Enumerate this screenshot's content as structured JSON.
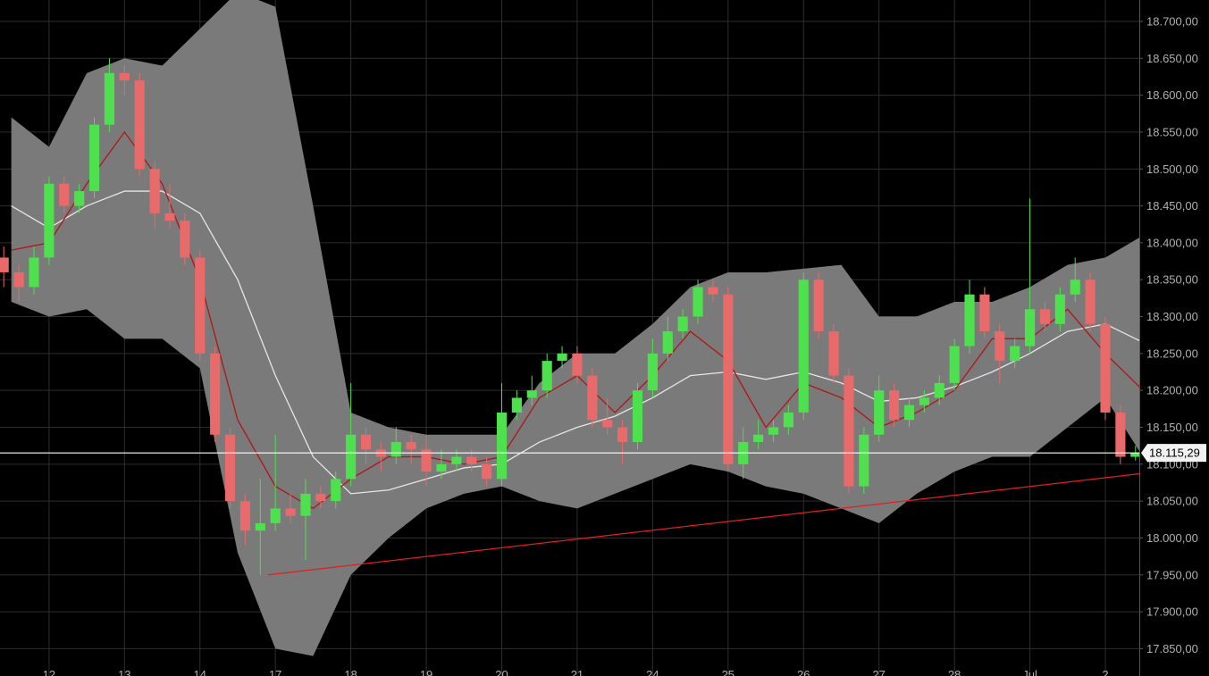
{
  "chart_data": {
    "type": "candlestick",
    "xlim": [
      -0.65,
      14.45
    ],
    "ylim": [
      17813,
      18729
    ],
    "grid": true,
    "up_color": "#4ee04e",
    "down_color": "#e86a6a",
    "xticks": [
      {
        "value": 0,
        "label": "12"
      },
      {
        "value": 1,
        "label": "13"
      },
      {
        "value": 2,
        "label": "14"
      },
      {
        "value": 3,
        "label": "17"
      },
      {
        "value": 4,
        "label": "18"
      },
      {
        "value": 5,
        "label": "19"
      },
      {
        "value": 6,
        "label": "20"
      },
      {
        "value": 7,
        "label": "21"
      },
      {
        "value": 8,
        "label": "24"
      },
      {
        "value": 9,
        "label": "25"
      },
      {
        "value": 10,
        "label": "26"
      },
      {
        "value": 11,
        "label": "27"
      },
      {
        "value": 12,
        "label": "28"
      },
      {
        "value": 13,
        "label": "Jul"
      },
      {
        "value": 14,
        "label": "2"
      }
    ],
    "yticks": [
      {
        "value": 17850,
        "label": "17.850,00"
      },
      {
        "value": 17900,
        "label": "17.900,00"
      },
      {
        "value": 17950,
        "label": "17.950,00"
      },
      {
        "value": 18000,
        "label": "18.000,00"
      },
      {
        "value": 18050,
        "label": "18.050,00"
      },
      {
        "value": 18100,
        "label": "18.100,00"
      },
      {
        "value": 18150,
        "label": "18.150,00"
      },
      {
        "value": 18200,
        "label": "18.200,00"
      },
      {
        "value": 18250,
        "label": "18.250,00"
      },
      {
        "value": 18300,
        "label": "18.300,00"
      },
      {
        "value": 18350,
        "label": "18.350,00"
      },
      {
        "value": 18400,
        "label": "18.400,00"
      },
      {
        "value": 18450,
        "label": "18.450,00"
      },
      {
        "value": 18500,
        "label": "18.500,00"
      },
      {
        "value": 18550,
        "label": "18.550,00"
      },
      {
        "value": 18600,
        "label": "18.600,00"
      },
      {
        "value": 18650,
        "label": "18.650,00"
      },
      {
        "value": 18700,
        "label": "18.700,00"
      }
    ],
    "x": [
      -0.6,
      -0.4,
      -0.2,
      0,
      0.2,
      0.4,
      0.6,
      0.8,
      1,
      1.2,
      1.4,
      1.6,
      1.8,
      2,
      2.2,
      2.4,
      2.6,
      2.8,
      3,
      3.2,
      3.4,
      3.6,
      3.8,
      4,
      4.2,
      4.4,
      4.6,
      4.8,
      5,
      5.2,
      5.4,
      5.6,
      5.8,
      6,
      6.2,
      6.4,
      6.6,
      6.8,
      7,
      7.2,
      7.4,
      7.6,
      7.8,
      8,
      8.2,
      8.4,
      8.6,
      8.8,
      9,
      9.2,
      9.4,
      9.6,
      9.8,
      10,
      10.2,
      10.4,
      10.6,
      10.8,
      11,
      11.2,
      11.4,
      11.6,
      11.8,
      12,
      12.2,
      12.4,
      12.6,
      12.8,
      13,
      13.2,
      13.4,
      13.6,
      13.8,
      14,
      14.2,
      14.4
    ],
    "open": [
      18380,
      18360,
      18340,
      18380,
      18480,
      18450,
      18470,
      18560,
      18630,
      18620,
      18500,
      18440,
      18430,
      18380,
      18250,
      18140,
      18050,
      18010,
      18020,
      18040,
      18030,
      18060,
      18050,
      18080,
      18140,
      18120,
      18110,
      18130,
      18120,
      18090,
      18100,
      18110,
      18100,
      18080,
      18170,
      18190,
      18200,
      18240,
      18250,
      18220,
      18160,
      18150,
      18130,
      18200,
      18250,
      18280,
      18300,
      18340,
      18330,
      18100,
      18130,
      18140,
      18150,
      18170,
      18350,
      18280,
      18220,
      18070,
      18140,
      18200,
      18160,
      18180,
      18190,
      18210,
      18260,
      18330,
      18280,
      18240,
      18260,
      18310,
      18290,
      18330,
      18350,
      18290,
      18170,
      18110
    ],
    "high": [
      18395,
      18370,
      18395,
      18490,
      18490,
      18480,
      18570,
      18650,
      18640,
      18630,
      18510,
      18480,
      18440,
      18390,
      18260,
      18150,
      18060,
      18080,
      18140,
      18060,
      18080,
      18070,
      18090,
      18210,
      18150,
      18130,
      18150,
      18140,
      18140,
      18120,
      18120,
      18120,
      18110,
      18210,
      18200,
      18220,
      18250,
      18260,
      18260,
      18230,
      18190,
      18160,
      18210,
      18270,
      18300,
      18310,
      18350,
      18350,
      18340,
      18150,
      18160,
      18160,
      18180,
      18360,
      18360,
      18290,
      18230,
      18150,
      18220,
      18210,
      18190,
      18200,
      18220,
      18270,
      18350,
      18340,
      18290,
      18270,
      18460,
      18320,
      18340,
      18380,
      18360,
      18300,
      18180,
      18125
    ],
    "low": [
      18340,
      18320,
      18330,
      18370,
      18440,
      18440,
      18460,
      18550,
      18600,
      18490,
      18420,
      18420,
      18370,
      18240,
      18130,
      18040,
      17990,
      17950,
      18010,
      18020,
      17970,
      18040,
      18040,
      18070,
      18100,
      18090,
      18100,
      18100,
      18070,
      18080,
      18090,
      18090,
      18070,
      18070,
      18160,
      18180,
      18190,
      18230,
      18210,
      18150,
      18140,
      18100,
      18120,
      18190,
      18240,
      18270,
      18290,
      18320,
      18090,
      18080,
      18120,
      18130,
      18140,
      18160,
      18270,
      18210,
      18060,
      18060,
      18130,
      18150,
      18150,
      18170,
      18180,
      18200,
      18250,
      18270,
      18210,
      18230,
      18250,
      18280,
      18280,
      18320,
      18280,
      18160,
      18100,
      18105
    ],
    "close": [
      18360,
      18340,
      18380,
      18480,
      18450,
      18470,
      18560,
      18630,
      18620,
      18500,
      18440,
      18430,
      18380,
      18250,
      18140,
      18050,
      18010,
      18020,
      18040,
      18030,
      18060,
      18050,
      18080,
      18140,
      18120,
      18110,
      18130,
      18120,
      18090,
      18100,
      18110,
      18100,
      18080,
      18170,
      18190,
      18200,
      18240,
      18250,
      18220,
      18160,
      18150,
      18130,
      18200,
      18250,
      18280,
      18300,
      18340,
      18330,
      18100,
      18130,
      18140,
      18150,
      18170,
      18350,
      18280,
      18220,
      18070,
      18140,
      18200,
      18160,
      18180,
      18190,
      18210,
      18260,
      18330,
      18280,
      18240,
      18260,
      18310,
      18290,
      18330,
      18350,
      18290,
      18170,
      18110,
      18115.29
    ],
    "bands": {
      "color": "#7a7a7a",
      "x": [
        -0.5,
        0,
        0.5,
        1,
        1.5,
        2,
        2.5,
        3,
        3.5,
        4,
        4.5,
        5,
        5.5,
        6,
        6.5,
        7,
        7.5,
        8,
        8.5,
        9,
        9.5,
        10,
        10.5,
        11,
        11.5,
        12,
        12.5,
        13,
        13.5,
        14,
        14.5
      ],
      "upper": [
        18570,
        18530,
        18630,
        18650,
        18640,
        18690,
        18740,
        18720,
        18450,
        18170,
        18150,
        18140,
        18140,
        18140,
        18210,
        18250,
        18250,
        18290,
        18340,
        18360,
        18360,
        18365,
        18370,
        18300,
        18300,
        18320,
        18320,
        18340,
        18370,
        18380,
        18410
      ],
      "lower": [
        18320,
        18300,
        18310,
        18270,
        18270,
        18230,
        17980,
        17850,
        17840,
        17950,
        18000,
        18040,
        18060,
        18070,
        18050,
        18040,
        18060,
        18080,
        18100,
        18090,
        18070,
        18060,
        18040,
        18020,
        18060,
        18090,
        18110,
        18110,
        18150,
        18190,
        18110
      ]
    },
    "lines": [
      {
        "color": "#e6e6e6",
        "values": [
          18450,
          18420,
          18450,
          18470,
          18470,
          18440,
          18350,
          18220,
          18110,
          18060,
          18065,
          18080,
          18095,
          18100,
          18130,
          18150,
          18165,
          18190,
          18220,
          18225,
          18215,
          18225,
          18210,
          18185,
          18190,
          18205,
          18225,
          18250,
          18280,
          18290,
          18265
        ]
      },
      {
        "color": "#b01515",
        "values": [
          18390,
          18400,
          18480,
          18550,
          18480,
          18350,
          18160,
          18070,
          18040,
          18080,
          18110,
          18110,
          18100,
          18110,
          18190,
          18220,
          18170,
          18220,
          18280,
          18240,
          18150,
          18210,
          18190,
          18150,
          18170,
          18200,
          18270,
          18270,
          18310,
          18250,
          18200
        ]
      }
    ],
    "trendline": {
      "color": "#e02020",
      "x": [
        2.9,
        14.45
      ],
      "values": [
        17950,
        18087
      ]
    },
    "last_price": {
      "value": 18115.29,
      "label": "18.115,29"
    }
  }
}
